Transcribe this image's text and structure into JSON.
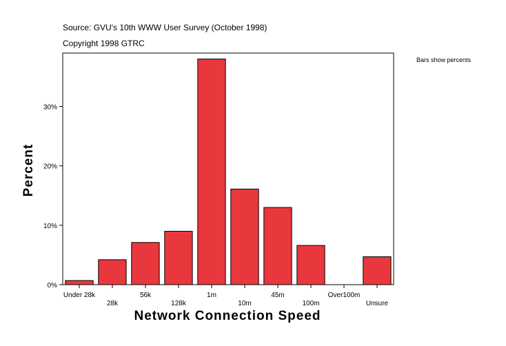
{
  "header": {
    "source": "Source: GVU's 10th WWW User Survey (October 1998)",
    "copyright": "Copyright 1998 GTRC"
  },
  "note": "Bars show percents",
  "colors": {
    "bar": "#e8383d",
    "axis": "#000000",
    "background": "#ffffff"
  },
  "chart_data": {
    "type": "bar",
    "title": "",
    "xlabel": "Network Connection Speed",
    "ylabel": "Percent",
    "categories": [
      "Under 28k",
      "28k",
      "56k",
      "128k",
      "1m",
      "10m",
      "45m",
      "100m",
      "Over100m",
      "Unsure"
    ],
    "values": [
      0.7,
      4.2,
      7.1,
      9.0,
      38.0,
      16.1,
      13.0,
      6.6,
      0.0,
      4.7
    ],
    "ylim": [
      0,
      39
    ],
    "yticks": [
      0,
      10,
      20,
      30
    ],
    "ytick_labels": [
      "0%",
      "10%",
      "20%",
      "30%"
    ],
    "grid": false,
    "legend": "none"
  }
}
